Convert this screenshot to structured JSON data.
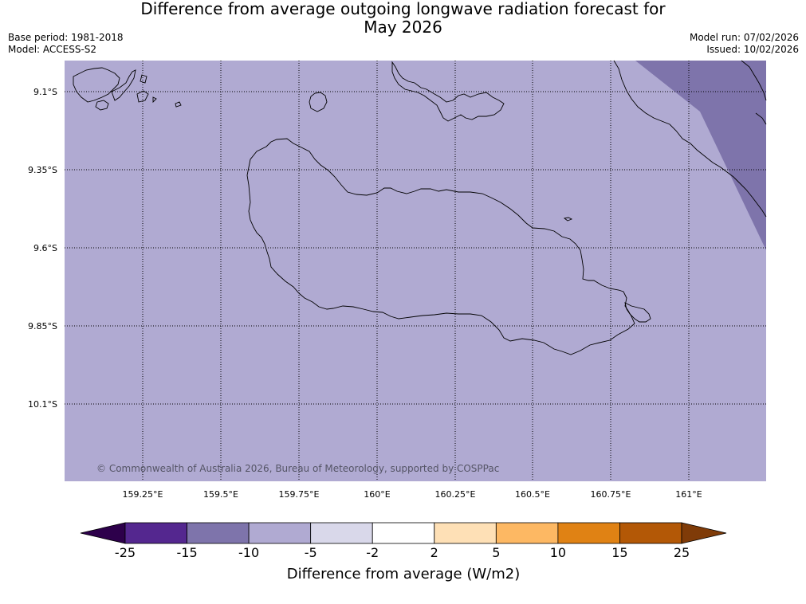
{
  "title": {
    "line1": "Difference from average outgoing longwave radiation forecast for",
    "line2": "May 2026"
  },
  "meta": {
    "base_period": "Base period: 1981-2018",
    "model": "Model: ACCESS-S2",
    "model_run": "Model run: 07/02/2026",
    "issued": "Issued: 10/02/2026"
  },
  "map": {
    "background_color": "#b0aad2",
    "anomaly_region_color": "#7e74ab",
    "y_ticks": [
      "9.1°S",
      "9.35°S",
      "9.6°S",
      "9.85°S",
      "10.1°S"
    ],
    "x_ticks": [
      "159.25°E",
      "159.5°E",
      "159.75°E",
      "160°E",
      "160.25°E",
      "160.5°E",
      "160.75°E",
      "161°E"
    ],
    "copyright": "© Commonwealth of Australia 2026, Bureau of Meteorology, supported by COSPPac"
  },
  "colorbar": {
    "title": "Difference from average (W/m2)",
    "labels": [
      "-25",
      "-15",
      "-10",
      "-5",
      "-2",
      "2",
      "5",
      "10",
      "15",
      "25"
    ],
    "colors": [
      "#54278f",
      "#7e74ab",
      "#b0aad2",
      "#d9d8ea",
      "#ffffff",
      "#fee0b6",
      "#fdb863",
      "#e08214",
      "#b35806"
    ],
    "extend_low_color": "#2d004b",
    "extend_high_color": "#7f3b08"
  }
}
